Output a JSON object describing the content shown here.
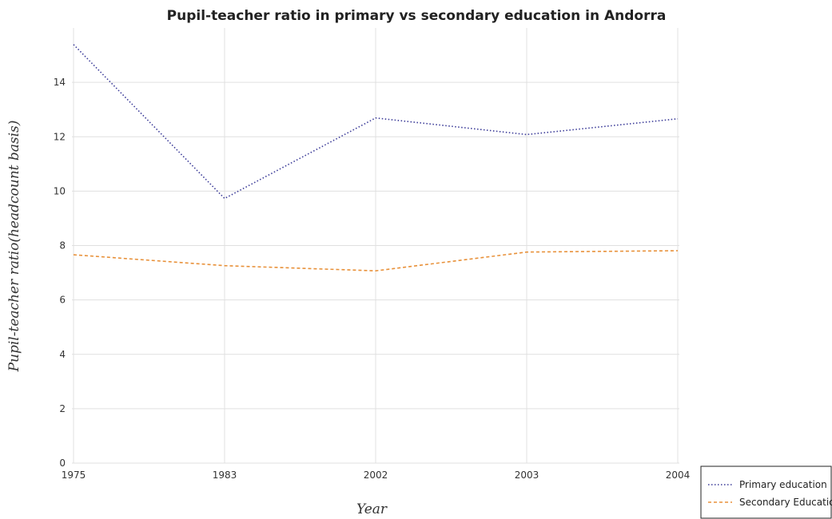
{
  "chart_data": {
    "type": "line",
    "title": "Pupil-teacher ratio in primary vs secondary education in Andorra",
    "xlabel": "Year",
    "ylabel": "Pupil-teacher ratio(headcount basis)",
    "categories": [
      "1975",
      "1983",
      "2002",
      "2003",
      "2004"
    ],
    "ylim": [
      0,
      16
    ],
    "yticks": [
      "0",
      "2",
      "4",
      "6",
      "8",
      "10",
      "12",
      "14"
    ],
    "grid": true,
    "legend_position": "bottom-right",
    "series": [
      {
        "name": "Primary education",
        "color": "#3b3b98",
        "style": "dotted",
        "values": [
          15.39,
          9.73,
          12.69,
          12.08,
          12.66
        ]
      },
      {
        "name": "Secondary Education",
        "color": "#e8913a",
        "style": "dashed",
        "values": [
          7.66,
          7.26,
          7.07,
          7.76,
          7.81
        ]
      }
    ]
  }
}
